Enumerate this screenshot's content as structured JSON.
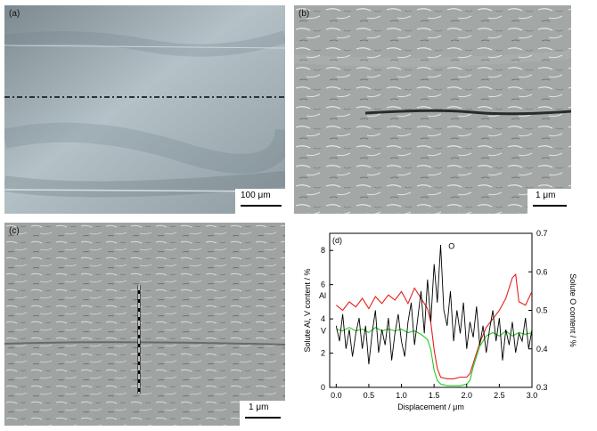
{
  "figure": {
    "panel_a": {
      "label": "(a)",
      "scale": "100 μm"
    },
    "panel_b": {
      "label": "(b)",
      "scale": "1 μm"
    },
    "panel_c": {
      "label": "(c)",
      "scale": "1 μm"
    }
  },
  "chart_data": {
    "type": "line",
    "panel_label": "(d)",
    "xlabel": "Displacement / μm",
    "ylabel_left": "Solute Al, V content / %",
    "ylabel_right": "Solute O content / %",
    "xlim": [
      -0.1,
      3.0
    ],
    "ylim_left": [
      0,
      9
    ],
    "ylim_right": [
      0.3,
      0.7
    ],
    "x_ticks": [
      "0.0",
      "0.5",
      "1.0",
      "1.5",
      "2.0",
      "2.5",
      "3.0"
    ],
    "y_left_ticks": [
      "0",
      "2",
      "4",
      "6",
      "8"
    ],
    "y_right_ticks": [
      "0.3",
      "0.4",
      "0.5",
      "0.6",
      "0.7"
    ],
    "grid": false,
    "series": [
      {
        "name": "Al",
        "axis": "left",
        "color": "#e3201c",
        "x": [
          0.0,
          0.1,
          0.2,
          0.3,
          0.4,
          0.5,
          0.6,
          0.7,
          0.8,
          0.9,
          1.0,
          1.1,
          1.2,
          1.3,
          1.4,
          1.45,
          1.5,
          1.55,
          1.6,
          1.7,
          1.8,
          1.9,
          2.0,
          2.05,
          2.1,
          2.2,
          2.3,
          2.4,
          2.5,
          2.6,
          2.7,
          2.75,
          2.8,
          2.9,
          3.0
        ],
        "y": [
          4.8,
          4.5,
          5.0,
          4.7,
          5.2,
          4.6,
          5.3,
          4.9,
          5.4,
          5.1,
          5.6,
          4.9,
          5.8,
          5.2,
          4.6,
          3.8,
          2.2,
          1.1,
          0.6,
          0.5,
          0.5,
          0.6,
          0.6,
          0.8,
          1.4,
          2.6,
          3.5,
          4.0,
          4.5,
          5.2,
          6.4,
          6.6,
          5.0,
          4.8,
          5.6
        ]
      },
      {
        "name": "V",
        "axis": "left",
        "color": "#22cc22",
        "x": [
          0.0,
          0.1,
          0.2,
          0.3,
          0.4,
          0.5,
          0.6,
          0.7,
          0.8,
          0.9,
          1.0,
          1.1,
          1.2,
          1.3,
          1.4,
          1.45,
          1.5,
          1.55,
          1.6,
          1.7,
          1.8,
          1.9,
          2.0,
          2.05,
          2.1,
          2.2,
          2.3,
          2.4,
          2.5,
          2.6,
          2.7,
          2.8,
          2.9,
          3.0
        ],
        "y": [
          3.4,
          3.3,
          3.5,
          3.3,
          3.4,
          3.2,
          3.5,
          3.3,
          3.4,
          3.3,
          3.4,
          3.2,
          3.3,
          3.1,
          2.8,
          2.2,
          1.0,
          0.4,
          0.2,
          0.1,
          0.1,
          0.1,
          0.2,
          0.4,
          1.2,
          2.4,
          3.0,
          3.2,
          3.0,
          3.3,
          3.0,
          3.2,
          3.1,
          3.2
        ]
      },
      {
        "name": "O",
        "axis": "right",
        "color": "#000000",
        "x": [
          0.0,
          0.05,
          0.1,
          0.15,
          0.2,
          0.25,
          0.3,
          0.35,
          0.4,
          0.45,
          0.5,
          0.55,
          0.6,
          0.65,
          0.7,
          0.75,
          0.8,
          0.85,
          0.9,
          0.95,
          1.0,
          1.05,
          1.1,
          1.15,
          1.2,
          1.25,
          1.3,
          1.35,
          1.4,
          1.45,
          1.5,
          1.55,
          1.6,
          1.65,
          1.7,
          1.75,
          1.8,
          1.85,
          1.9,
          1.95,
          2.0,
          2.05,
          2.1,
          2.15,
          2.2,
          2.25,
          2.3,
          2.35,
          2.4,
          2.45,
          2.5,
          2.55,
          2.6,
          2.65,
          2.7,
          2.75,
          2.8,
          2.85,
          2.9,
          2.95,
          3.0
        ],
        "y": [
          0.46,
          0.42,
          0.49,
          0.4,
          0.45,
          0.38,
          0.44,
          0.48,
          0.4,
          0.46,
          0.36,
          0.44,
          0.5,
          0.39,
          0.45,
          0.41,
          0.48,
          0.37,
          0.44,
          0.49,
          0.42,
          0.38,
          0.47,
          0.52,
          0.41,
          0.48,
          0.55,
          0.44,
          0.58,
          0.47,
          0.62,
          0.52,
          0.67,
          0.5,
          0.46,
          0.55,
          0.42,
          0.5,
          0.44,
          0.52,
          0.4,
          0.47,
          0.43,
          0.51,
          0.41,
          0.46,
          0.39,
          0.45,
          0.5,
          0.42,
          0.48,
          0.37,
          0.45,
          0.41,
          0.47,
          0.39,
          0.44,
          0.42,
          0.48,
          0.4,
          0.45
        ]
      }
    ]
  }
}
